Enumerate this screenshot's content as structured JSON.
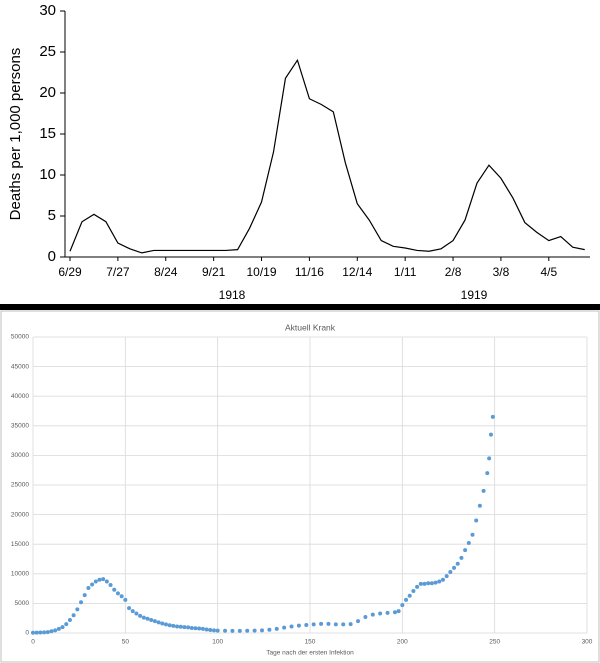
{
  "chart_data": [
    {
      "type": "line",
      "y_label": "Deaths per 1,000 persons",
      "categories": [
        "6/29",
        null,
        null,
        null,
        "7/27",
        null,
        null,
        null,
        "8/24",
        null,
        null,
        null,
        "9/21",
        null,
        null,
        null,
        "10/19",
        null,
        null,
        null,
        "11/16",
        null,
        null,
        null,
        "12/14",
        null,
        null,
        null,
        "1/11",
        null,
        null,
        null,
        "2/8",
        null,
        null,
        null,
        "3/8",
        null,
        null,
        null,
        "4/5",
        null,
        null,
        null
      ],
      "series": [
        {
          "color": "#000000",
          "values": [
            0.7,
            4.3,
            5.2,
            4.3,
            1.7,
            1.0,
            0.5,
            0.8,
            0.8,
            0.8,
            0.8,
            0.8,
            0.8,
            0.8,
            0.9,
            3.5,
            6.7,
            12.8,
            21.8,
            24.0,
            19.3,
            18.6,
            17.7,
            11.5,
            6.5,
            4.5,
            2.0,
            1.3,
            1.1,
            0.8,
            0.7,
            1.0,
            2.0,
            4.5,
            9.0,
            11.2,
            9.6,
            7.2,
            4.2,
            3.0,
            2.0,
            2.5,
            1.2,
            0.9
          ]
        }
      ],
      "annotations": [
        "1918",
        "1919"
      ],
      "ylim": [
        0,
        30
      ],
      "yticks": [
        0,
        5,
        10,
        15,
        20,
        25,
        30
      ],
      "grid": false
    },
    {
      "type": "scatter",
      "title": "Aktuell Krank",
      "x_label": "Tage nach der ersten Infektion",
      "x": [
        0,
        2,
        4,
        6,
        8,
        10,
        12,
        14,
        16,
        18,
        20,
        22,
        24,
        26,
        28,
        30,
        32,
        34,
        36,
        38,
        40,
        42,
        44,
        46,
        48,
        50,
        52,
        54,
        56,
        58,
        60,
        62,
        64,
        66,
        68,
        70,
        72,
        74,
        76,
        78,
        80,
        82,
        84,
        86,
        88,
        90,
        92,
        94,
        96,
        98,
        100,
        104,
        108,
        112,
        116,
        120,
        124,
        128,
        132,
        136,
        140,
        144,
        148,
        152,
        156,
        160,
        164,
        168,
        172,
        176,
        180,
        184,
        188,
        192,
        196,
        198,
        200,
        202,
        204,
        206,
        208,
        210,
        212,
        214,
        216,
        218,
        220,
        222,
        224,
        226,
        228,
        230,
        232,
        234,
        236,
        238,
        240,
        242,
        244,
        246,
        247,
        248,
        249
      ],
      "series": [
        {
          "color": "#5b9bd5",
          "values": [
            50,
            60,
            80,
            100,
            150,
            300,
            450,
            700,
            1000,
            1500,
            2200,
            3000,
            4000,
            5200,
            6400,
            7600,
            8200,
            8700,
            9000,
            9100,
            8700,
            8100,
            7300,
            6700,
            6200,
            5600,
            4200,
            3700,
            3300,
            2900,
            2600,
            2400,
            2200,
            2000,
            1800,
            1600,
            1450,
            1300,
            1200,
            1100,
            1050,
            1000,
            950,
            850,
            800,
            750,
            700,
            600,
            500,
            450,
            400,
            380,
            360,
            350,
            370,
            400,
            450,
            550,
            700,
            900,
            1100,
            1250,
            1350,
            1450,
            1550,
            1550,
            1450,
            1450,
            1500,
            2000,
            2700,
            3100,
            3300,
            3400,
            3500,
            3700,
            4700,
            5600,
            6300,
            7100,
            7800,
            8300,
            8300,
            8400,
            8400,
            8500,
            8700,
            9000,
            9600,
            10300,
            11000,
            11700,
            12700,
            14000,
            15200,
            16600,
            19000,
            21500,
            24000,
            27000,
            29500,
            33500,
            36500
          ]
        }
      ],
      "xlim": [
        0,
        300
      ],
      "xticks": [
        0,
        50,
        100,
        150,
        200,
        250,
        300
      ],
      "ylim": [
        0,
        50000
      ],
      "yticks": [
        0,
        5000,
        10000,
        15000,
        20000,
        25000,
        30000,
        35000,
        40000,
        45000,
        50000
      ],
      "grid": true
    }
  ]
}
